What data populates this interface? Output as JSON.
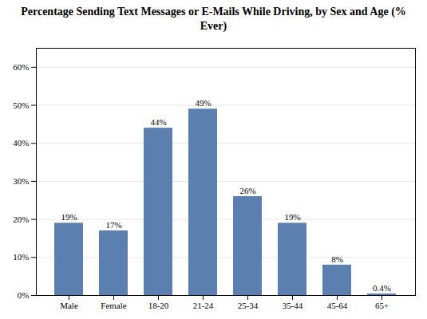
{
  "chart_data": {
    "type": "bar",
    "title": "Percentage Sending Text Messages or E-Mails While Driving, by Sex and Age (% Ever)",
    "categories": [
      "Male",
      "Female",
      "18-20",
      "21-24",
      "25-34",
      "35-44",
      "45-64",
      "65+"
    ],
    "values": [
      19,
      17,
      44,
      49,
      26,
      19,
      8,
      0.4
    ],
    "value_labels": [
      "19%",
      "17%",
      "44%",
      "49%",
      "26%",
      "19%",
      "8%",
      "0.4%"
    ],
    "color": "#5b7faf",
    "ylim": [
      0,
      65
    ],
    "yticks": [
      {
        "value": 0,
        "label": "0%"
      },
      {
        "value": 10,
        "label": "10%"
      },
      {
        "value": 20,
        "label": "20%"
      },
      {
        "value": 30,
        "label": "30%"
      },
      {
        "value": 40,
        "label": "40%"
      },
      {
        "value": 50,
        "label": "50%"
      },
      {
        "value": 60,
        "label": "60%"
      }
    ],
    "grid": true,
    "data_labels": true
  }
}
